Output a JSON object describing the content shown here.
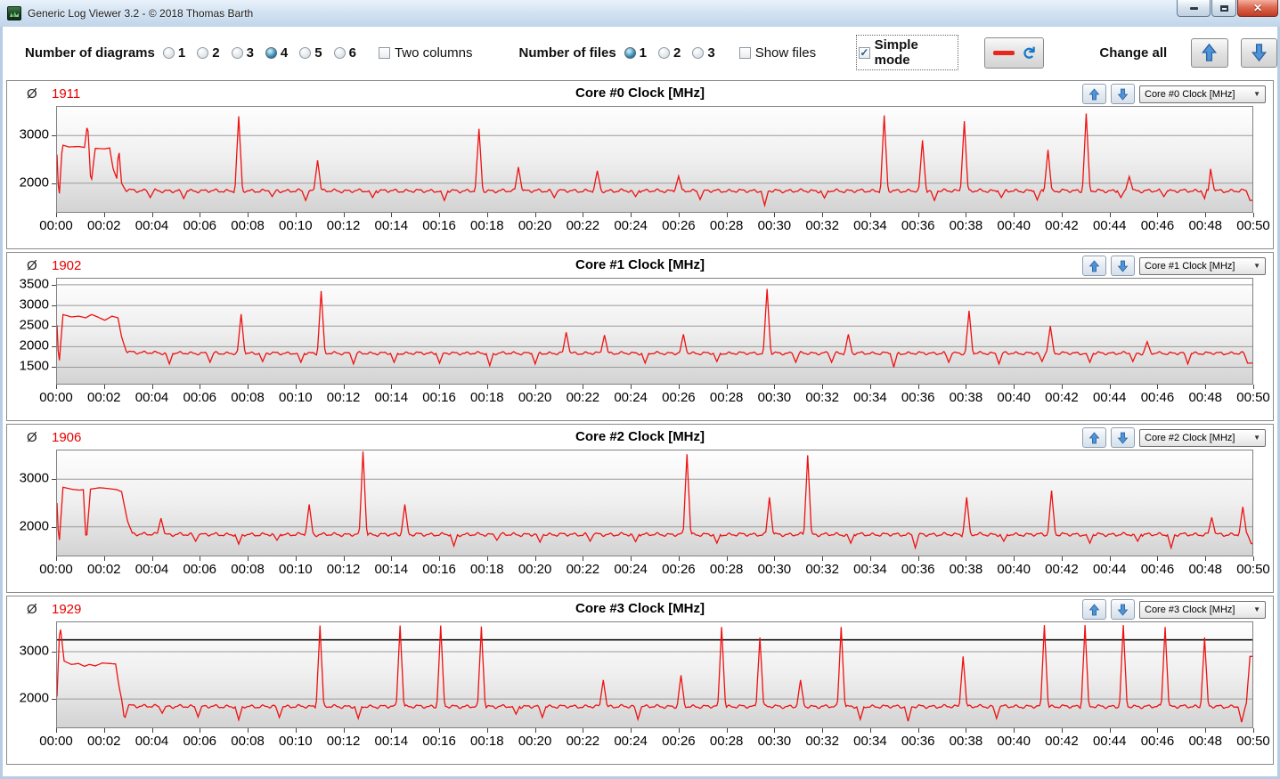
{
  "window": {
    "title": "Generic Log Viewer 3.2 - © 2018 Thomas Barth"
  },
  "icons": {
    "check": "✓",
    "caret": "▼",
    "refresh": "↻",
    "close": "✕",
    "avg_symbol": "Ø"
  },
  "toolbar": {
    "diagrams": {
      "label": "Number of diagrams",
      "options": [
        "1",
        "2",
        "3",
        "4",
        "5",
        "6"
      ],
      "selected": "4"
    },
    "two_columns": {
      "label": "Two columns",
      "checked": false
    },
    "files": {
      "label": "Number of files",
      "options": [
        "1",
        "2",
        "3"
      ],
      "selected": "1"
    },
    "show_files": {
      "label": "Show files",
      "checked": false
    },
    "simple_mode": {
      "label": "Simple mode",
      "checked": true
    },
    "change_all_label": "Change all"
  },
  "x_axis": {
    "tick_labels": [
      "00:00",
      "00:02",
      "00:04",
      "00:06",
      "00:08",
      "00:10",
      "00:12",
      "00:14",
      "00:16",
      "00:18",
      "00:20",
      "00:22",
      "00:24",
      "00:26",
      "00:28",
      "00:30",
      "00:32",
      "00:34",
      "00:36",
      "00:38",
      "00:40",
      "00:42",
      "00:44",
      "00:46",
      "00:48",
      "00:50"
    ]
  },
  "colors": {
    "series": "#ee1111",
    "ref_line": "#111111",
    "avg": "#e60000",
    "grid": "#9a9a9a"
  },
  "chart_data": [
    {
      "type": "line",
      "avg": "1911",
      "title": "Core #0 Clock [MHz]",
      "dropdown": "Core #0 Clock [MHz]",
      "y_ticks": [
        2000,
        3000
      ],
      "y_min": 1400,
      "y_max": 3600,
      "baseline": 1850,
      "ref_line": null,
      "x_range_min": [
        0,
        50
      ],
      "initial": [
        [
          0,
          2600
        ],
        [
          0.08,
          1620
        ],
        [
          0.22,
          2800
        ],
        [
          0.5,
          2760
        ],
        [
          0.9,
          2770
        ],
        [
          1.15,
          2750
        ],
        [
          1.28,
          3280
        ],
        [
          1.42,
          1960
        ],
        [
          1.6,
          2730
        ],
        [
          2.0,
          2720
        ],
        [
          2.2,
          2740
        ],
        [
          2.35,
          2300
        ],
        [
          2.5,
          2100
        ],
        [
          2.58,
          2760
        ],
        [
          2.7,
          2000
        ],
        [
          2.85,
          1870
        ]
      ],
      "events": [
        [
          3.9,
          1700
        ],
        [
          5.3,
          1680
        ],
        [
          7.6,
          3400
        ],
        [
          9.0,
          1720
        ],
        [
          10.4,
          1640
        ],
        [
          10.9,
          2480
        ],
        [
          13.2,
          1700
        ],
        [
          16.2,
          1640
        ],
        [
          17.65,
          3140
        ],
        [
          19.3,
          2340
        ],
        [
          20.8,
          1700
        ],
        [
          22.6,
          2260
        ],
        [
          24.2,
          1720
        ],
        [
          26.0,
          2150
        ],
        [
          26.9,
          1660
        ],
        [
          29.6,
          1540
        ],
        [
          32.1,
          1690
        ],
        [
          34.6,
          3420
        ],
        [
          36.2,
          2900
        ],
        [
          36.7,
          1640
        ],
        [
          37.95,
          3300
        ],
        [
          39.5,
          1700
        ],
        [
          41.0,
          1650
        ],
        [
          41.45,
          2700
        ],
        [
          43.05,
          3460
        ],
        [
          44.5,
          1700
        ],
        [
          44.85,
          2140
        ],
        [
          46.3,
          1720
        ],
        [
          48.0,
          1680
        ],
        [
          48.25,
          2300
        ],
        [
          49.9,
          1640
        ]
      ]
    },
    {
      "type": "line",
      "avg": "1902",
      "title": "Core #1 Clock [MHz]",
      "dropdown": "Core #1 Clock [MHz]",
      "y_ticks": [
        1500,
        2000,
        2500,
        3000,
        3500
      ],
      "y_min": 1100,
      "y_max": 3650,
      "baseline": 1850,
      "ref_line": null,
      "x_range_min": [
        0,
        50
      ],
      "initial": [
        [
          0,
          2520
        ],
        [
          0.08,
          1520
        ],
        [
          0.25,
          2780
        ],
        [
          0.6,
          2720
        ],
        [
          0.9,
          2740
        ],
        [
          1.2,
          2700
        ],
        [
          1.45,
          2780
        ],
        [
          1.7,
          2720
        ],
        [
          2.0,
          2640
        ],
        [
          2.3,
          2740
        ],
        [
          2.55,
          2700
        ],
        [
          2.7,
          2240
        ],
        [
          2.9,
          1880
        ]
      ],
      "events": [
        [
          4.7,
          1580
        ],
        [
          6.4,
          1620
        ],
        [
          7.7,
          2790
        ],
        [
          8.6,
          1640
        ],
        [
          10.2,
          1620
        ],
        [
          11.05,
          3350
        ],
        [
          12.4,
          1580
        ],
        [
          14.1,
          1620
        ],
        [
          16.0,
          1600
        ],
        [
          18.1,
          1540
        ],
        [
          20.0,
          1580
        ],
        [
          21.3,
          2350
        ],
        [
          22.9,
          2280
        ],
        [
          24.6,
          1600
        ],
        [
          26.2,
          2300
        ],
        [
          27.6,
          1640
        ],
        [
          29.7,
          3400
        ],
        [
          30.9,
          1620
        ],
        [
          32.4,
          1620
        ],
        [
          33.1,
          2300
        ],
        [
          35.0,
          1500
        ],
        [
          37.3,
          1620
        ],
        [
          38.15,
          2870
        ],
        [
          39.4,
          1580
        ],
        [
          41.2,
          1640
        ],
        [
          41.55,
          2500
        ],
        [
          43.2,
          1620
        ],
        [
          45.0,
          1640
        ],
        [
          45.6,
          2120
        ],
        [
          47.3,
          1580
        ],
        [
          49.8,
          1600
        ]
      ]
    },
    {
      "type": "line",
      "avg": "1906",
      "title": "Core #2 Clock [MHz]",
      "dropdown": "Core #2 Clock [MHz]",
      "y_ticks": [
        2000,
        3000
      ],
      "y_min": 1400,
      "y_max": 3600,
      "baseline": 1850,
      "ref_line": null,
      "x_range_min": [
        0,
        50
      ],
      "initial": [
        [
          0,
          2500
        ],
        [
          0.08,
          1580
        ],
        [
          0.25,
          2830
        ],
        [
          0.6,
          2790
        ],
        [
          0.95,
          2770
        ],
        [
          1.1,
          2780
        ],
        [
          1.22,
          1640
        ],
        [
          1.4,
          2790
        ],
        [
          1.8,
          2820
        ],
        [
          2.2,
          2800
        ],
        [
          2.5,
          2780
        ],
        [
          2.7,
          2740
        ],
        [
          2.95,
          2120
        ],
        [
          3.15,
          1870
        ]
      ],
      "events": [
        [
          4.35,
          2180
        ],
        [
          5.8,
          1700
        ],
        [
          7.6,
          1640
        ],
        [
          9.2,
          1720
        ],
        [
          10.55,
          2470
        ],
        [
          12.8,
          3580
        ],
        [
          14.55,
          2470
        ],
        [
          16.6,
          1600
        ],
        [
          18.4,
          1720
        ],
        [
          20.2,
          1680
        ],
        [
          22.3,
          1700
        ],
        [
          24.2,
          1690
        ],
        [
          26.35,
          3520
        ],
        [
          27.6,
          1660
        ],
        [
          29.8,
          2620
        ],
        [
          31.4,
          3500
        ],
        [
          33.2,
          1660
        ],
        [
          35.9,
          1560
        ],
        [
          38.05,
          2620
        ],
        [
          39.6,
          1700
        ],
        [
          41.6,
          2760
        ],
        [
          43.2,
          1660
        ],
        [
          45.2,
          1700
        ],
        [
          46.6,
          1560
        ],
        [
          48.3,
          2200
        ],
        [
          49.6,
          2420
        ],
        [
          49.95,
          1650
        ]
      ]
    },
    {
      "type": "line",
      "avg": "1929",
      "title": "Core #3 Clock [MHz]",
      "dropdown": "Core #3 Clock [MHz]",
      "y_ticks": [
        2000,
        3000
      ],
      "y_min": 1400,
      "y_max": 3620,
      "baseline": 1850,
      "ref_line": 3250,
      "x_range_min": [
        0,
        50
      ],
      "initial": [
        [
          0,
          2050
        ],
        [
          0.12,
          3600
        ],
        [
          0.3,
          2800
        ],
        [
          0.6,
          2730
        ],
        [
          0.9,
          2750
        ],
        [
          1.15,
          2690
        ],
        [
          1.35,
          2730
        ],
        [
          1.6,
          2700
        ],
        [
          1.9,
          2760
        ],
        [
          2.2,
          2750
        ],
        [
          2.45,
          2740
        ],
        [
          2.6,
          2250
        ],
        [
          2.72,
          1950
        ],
        [
          2.82,
          1560
        ],
        [
          3.0,
          1870
        ]
      ],
      "events": [
        [
          4.4,
          1700
        ],
        [
          5.9,
          1620
        ],
        [
          7.6,
          1560
        ],
        [
          9.3,
          1610
        ],
        [
          11.0,
          3550
        ],
        [
          12.6,
          1590
        ],
        [
          14.35,
          3550
        ],
        [
          16.05,
          3550
        ],
        [
          17.75,
          3530
        ],
        [
          19.2,
          1680
        ],
        [
          20.3,
          1610
        ],
        [
          22.85,
          2400
        ],
        [
          24.3,
          1570
        ],
        [
          26.1,
          2500
        ],
        [
          27.8,
          3520
        ],
        [
          29.4,
          3300
        ],
        [
          31.1,
          2400
        ],
        [
          32.8,
          3520
        ],
        [
          33.6,
          1570
        ],
        [
          35.6,
          1530
        ],
        [
          37.9,
          2900
        ],
        [
          39.3,
          1590
        ],
        [
          41.3,
          3560
        ],
        [
          43.0,
          3560
        ],
        [
          44.6,
          3560
        ],
        [
          46.35,
          3520
        ],
        [
          48.0,
          3300
        ],
        [
          49.55,
          1510
        ],
        [
          49.9,
          2900
        ]
      ]
    }
  ]
}
